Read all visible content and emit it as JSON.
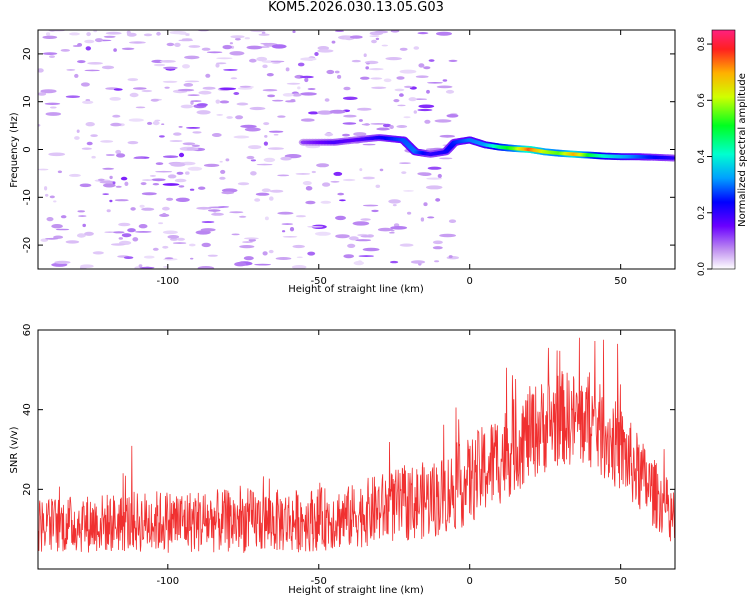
{
  "title": "KOM5.2026.030.13.05.G03",
  "chart_data": [
    {
      "type": "heatmap",
      "xlabel": "Height of straight line (km)",
      "ylabel": "Frequency (Hz)",
      "xlim": [
        -143,
        68
      ],
      "ylim": [
        -25,
        25
      ],
      "xticks": [
        -100,
        -50,
        0,
        50
      ],
      "xtick_labels": [
        "-100",
        "-50",
        "0",
        "50"
      ],
      "yticks": [
        -20,
        -10,
        0,
        10,
        20
      ],
      "ytick_labels": [
        "-20",
        "-10",
        "0",
        "10",
        "20"
      ],
      "colorbar": {
        "label": "Normalized spectral amplitude",
        "range": [
          0,
          0.85
        ],
        "ticks": [
          0.0,
          0.2,
          0.4,
          0.6,
          0.8
        ],
        "tick_labels": [
          "0.0",
          "0.2",
          "0.4",
          "0.6",
          "0.8"
        ]
      },
      "ridge": {
        "description_free_points": [
          {
            "x": -55,
            "y": 1.5,
            "v": 0.12
          },
          {
            "x": -45,
            "y": 1.5,
            "v": 0.18
          },
          {
            "x": -38,
            "y": 2.0,
            "v": 0.16
          },
          {
            "x": -30,
            "y": 2.5,
            "v": 0.22
          },
          {
            "x": -22,
            "y": 2.0,
            "v": 0.28
          },
          {
            "x": -18,
            "y": -0.5,
            "v": 0.3
          },
          {
            "x": -13,
            "y": -1.0,
            "v": 0.2
          },
          {
            "x": -8,
            "y": -0.5,
            "v": 0.22
          },
          {
            "x": -5,
            "y": 1.5,
            "v": 0.25
          },
          {
            "x": 0,
            "y": 2.0,
            "v": 0.3
          },
          {
            "x": 5,
            "y": 1.0,
            "v": 0.32
          },
          {
            "x": 10,
            "y": 0.5,
            "v": 0.45
          },
          {
            "x": 15,
            "y": 0.2,
            "v": 0.55
          },
          {
            "x": 20,
            "y": 0.0,
            "v": 0.75
          },
          {
            "x": 25,
            "y": -0.5,
            "v": 0.6
          },
          {
            "x": 30,
            "y": -0.8,
            "v": 0.55
          },
          {
            "x": 35,
            "y": -1.0,
            "v": 0.7
          },
          {
            "x": 40,
            "y": -1.2,
            "v": 0.5
          },
          {
            "x": 45,
            "y": -1.4,
            "v": 0.4
          },
          {
            "x": 50,
            "y": -1.5,
            "v": 0.35
          },
          {
            "x": 55,
            "y": -1.5,
            "v": 0.3
          },
          {
            "x": 60,
            "y": -1.6,
            "v": 0.25
          },
          {
            "x": 68,
            "y": -1.8,
            "v": 0.2
          }
        ],
        "noise_level": 0.1
      }
    },
    {
      "type": "line",
      "xlabel": "Height of straight line (km)",
      "ylabel": "SNR (v/v)",
      "xlim": [
        -143,
        68
      ],
      "ylim": [
        0,
        60
      ],
      "xticks": [
        -100,
        -50,
        0,
        50
      ],
      "xtick_labels": [
        "-100",
        "-50",
        "0",
        "50"
      ],
      "yticks": [
        20,
        40,
        60
      ],
      "ytick_labels": [
        "20",
        "40",
        "60"
      ],
      "series": [
        {
          "name": "SNR",
          "color": "#f03030",
          "trend_x": [
            -143,
            -100,
            -60,
            -40,
            -30,
            -10,
            0,
            10,
            20,
            30,
            40,
            50,
            60,
            68
          ],
          "trend_y": [
            11,
            12,
            12,
            13,
            15,
            18,
            22,
            28,
            34,
            38,
            37,
            30,
            20,
            13
          ],
          "spread": [
            7,
            8,
            8,
            8,
            9,
            10,
            11,
            12,
            12,
            12,
            12,
            11,
            9,
            7
          ]
        }
      ]
    }
  ]
}
